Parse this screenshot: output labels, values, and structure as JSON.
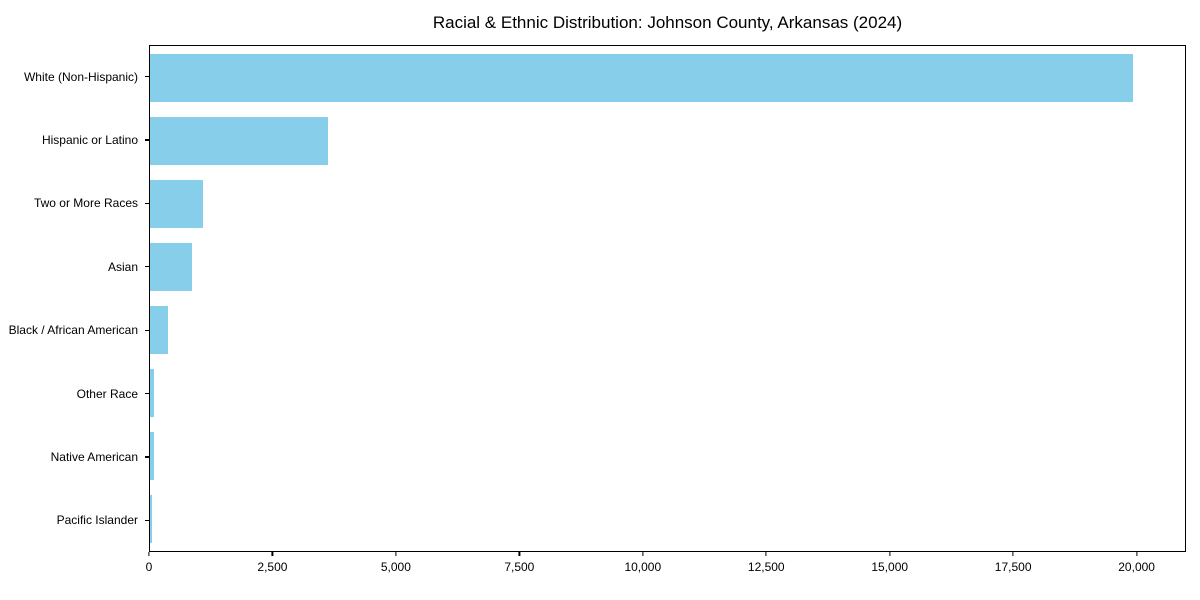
{
  "title": "Racial & Ethnic Distribution: Johnson County, Arkansas (2024)",
  "colors": {
    "bar": "#87CEEB",
    "axis": "#000000",
    "background": "#ffffff",
    "text": "#000000"
  },
  "chart_data": {
    "type": "bar",
    "orientation": "horizontal",
    "title": "Racial & Ethnic Distribution: Johnson County, Arkansas (2024)",
    "categories": [
      "White (Non-Hispanic)",
      "Hispanic or Latino",
      "Two or More Races",
      "Asian",
      "Black / African American",
      "Other Race",
      "Native American",
      "Pacific Islander"
    ],
    "values": [
      19950,
      3620,
      1070,
      850,
      360,
      80,
      75,
      45
    ],
    "bar_color": "#87CEEB",
    "xlabel": "",
    "ylabel": "",
    "xlim": [
      0,
      21000
    ],
    "xticks": [
      0,
      2500,
      5000,
      7500,
      10000,
      12500,
      15000,
      17500,
      20000
    ],
    "xtick_labels": [
      "0",
      "2,500",
      "5,000",
      "7,500",
      "10,000",
      "12,500",
      "15,000",
      "17,500",
      "20,000"
    ],
    "grid": false,
    "legend": null
  }
}
